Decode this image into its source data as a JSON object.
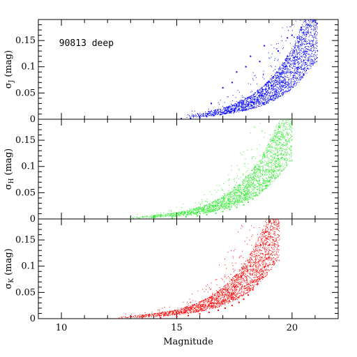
{
  "chart_data": [
    {
      "type": "scatter",
      "panel": "top",
      "annotation": "90813 deep",
      "ylabel_sym": "σ",
      "ylabel_sub": "J",
      "ylabel_unit": "(mag)",
      "color": "#0000ff",
      "xlim": [
        9,
        22
      ],
      "ylim": [
        0,
        0.19
      ],
      "yticks": [
        "0",
        "0.05",
        "0.1",
        "0.15"
      ],
      "series": [
        {
          "x": [
            15.2,
            15.6,
            16.0,
            16.3,
            16.6,
            16.9,
            17.1,
            17.3,
            17.5,
            17.7,
            17.9,
            18.1,
            18.3,
            18.5,
            18.7,
            18.9,
            19.0,
            19.1,
            19.3,
            19.5,
            19.7,
            19.9,
            20.1,
            20.3,
            20.5,
            20.7,
            17.0,
            17.6,
            18.2,
            18.8,
            19.2,
            19.6,
            20.0,
            20.4,
            16.5,
            17.4,
            18.0,
            18.6,
            19.4,
            19.8
          ],
          "y": [
            0.001,
            0.002,
            0.003,
            0.005,
            0.007,
            0.009,
            0.011,
            0.013,
            0.016,
            0.019,
            0.023,
            0.027,
            0.032,
            0.038,
            0.045,
            0.052,
            0.058,
            0.064,
            0.074,
            0.086,
            0.1,
            0.115,
            0.13,
            0.148,
            0.165,
            0.18,
            0.06,
            0.09,
            0.12,
            0.14,
            0.045,
            0.07,
            0.16,
            0.175,
            0.03,
            0.07,
            0.1,
            0.11,
            0.13,
            0.155
          ]
        }
      ]
    },
    {
      "type": "scatter",
      "panel": "middle",
      "ylabel_sym": "σ",
      "ylabel_sub": "H",
      "ylabel_unit": "(mag)",
      "color": "#33ee33",
      "xlim": [
        9,
        22
      ],
      "ylim": [
        0,
        0.19
      ],
      "yticks": [
        "0",
        "0.05",
        "0.1",
        "0.15"
      ],
      "series": [
        {
          "x": [
            13.0,
            14.0,
            14.8,
            15.4,
            15.9,
            16.3,
            16.7,
            17.0,
            17.3,
            17.6,
            17.9,
            18.1,
            18.3,
            18.5,
            18.7,
            18.9,
            19.0,
            19.1,
            19.2,
            19.3,
            19.4,
            19.5,
            19.6,
            16.8,
            17.5,
            18.0,
            18.4,
            18.8,
            19.15,
            19.45
          ],
          "y": [
            0.0005,
            0.001,
            0.002,
            0.004,
            0.006,
            0.008,
            0.011,
            0.014,
            0.018,
            0.022,
            0.027,
            0.032,
            0.038,
            0.045,
            0.054,
            0.064,
            0.072,
            0.08,
            0.09,
            0.1,
            0.115,
            0.135,
            0.16,
            0.03,
            0.06,
            0.08,
            0.1,
            0.12,
            0.15,
            0.175
          ]
        }
      ]
    },
    {
      "type": "scatter",
      "panel": "bottom",
      "ylabel_sym": "σ",
      "ylabel_sub": "K",
      "ylabel_unit": "(mag)",
      "color": "#ff0000",
      "xlim": [
        9,
        22
      ],
      "ylim": [
        0,
        0.19
      ],
      "yticks": [
        "0",
        "0.05",
        "0.1",
        "0.15"
      ],
      "xticks": [
        "10",
        "15",
        "20"
      ],
      "xlabel": "Magnitude",
      "series": [
        {
          "x": [
            12.5,
            13.5,
            14.3,
            15.0,
            15.5,
            16.0,
            16.4,
            16.8,
            17.1,
            17.4,
            17.7,
            17.9,
            18.1,
            18.3,
            18.5,
            18.6,
            18.7,
            18.8,
            18.9,
            19.0,
            16.5,
            17.2,
            17.8,
            18.2,
            18.45,
            18.65,
            18.85,
            19.05
          ],
          "y": [
            0.0005,
            0.001,
            0.002,
            0.004,
            0.006,
            0.009,
            0.012,
            0.016,
            0.02,
            0.025,
            0.031,
            0.037,
            0.045,
            0.055,
            0.066,
            0.075,
            0.085,
            0.098,
            0.115,
            0.14,
            0.03,
            0.055,
            0.08,
            0.1,
            0.12,
            0.14,
            0.165,
            0.185
          ]
        }
      ]
    }
  ]
}
